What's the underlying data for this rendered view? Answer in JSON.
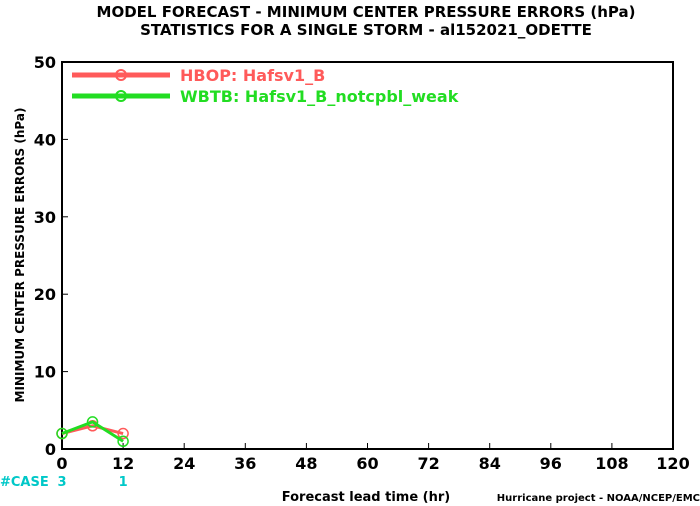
{
  "chart_data": {
    "type": "line",
    "title": "MODEL FORECAST - MINIMUM CENTER PRESSURE ERRORS (hPa)",
    "subtitle": "STATISTICS FOR A SINGLE STORM - al152021_ODETTE",
    "xlabel": "Forecast lead time (hr)",
    "ylabel": "MINIMUM CENTER PRESSURE ERRORS (hPa)",
    "xlim": [
      0,
      120
    ],
    "ylim": [
      0,
      50
    ],
    "x_ticks": [
      0,
      12,
      24,
      36,
      48,
      60,
      72,
      84,
      96,
      108,
      120
    ],
    "y_ticks": [
      0,
      10,
      20,
      30,
      40,
      50
    ],
    "grid": false,
    "legend_position": "top-left",
    "series": [
      {
        "name": "HBOP: Hafsv1_B",
        "color": "#ff5a5a",
        "x": [
          0,
          6,
          12
        ],
        "y": [
          2.0,
          3.0,
          2.0
        ]
      },
      {
        "name": "WBTB: Hafsv1_B_notcpbl_weak",
        "color": "#22dd22",
        "x": [
          0,
          6,
          12
        ],
        "y": [
          2.0,
          3.5,
          1.0
        ]
      }
    ],
    "case_label": "#CASE",
    "case_color": "#00c8c8",
    "case_counts": [
      {
        "x": 0,
        "n": "3"
      },
      {
        "x": 12,
        "n": "1"
      }
    ],
    "credit": "Hurricane project - NOAA/NCEP/EMC"
  }
}
